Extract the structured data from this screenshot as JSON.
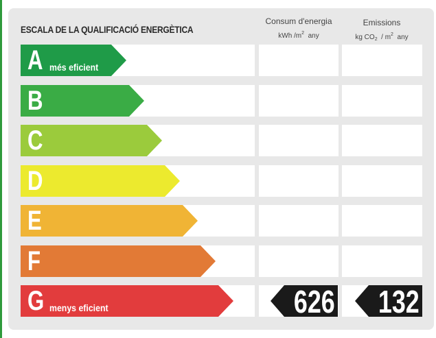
{
  "title": "ESCALA DE LA QUALIFICACIÓ ENERGÈTICA",
  "columns": {
    "energy": {
      "label": "Consum d'energia",
      "unit_a": "kWh /m",
      "unit_sup": "2",
      "unit_b": "any"
    },
    "emissions": {
      "label": "Emissions",
      "unit_a": "kg CO",
      "unit_sub": "2",
      "unit_mid": "/ m",
      "unit_sup": "2",
      "unit_b": "any"
    }
  },
  "classes": [
    {
      "letter": "A",
      "label": "més eficient",
      "color": "#1f9b48"
    },
    {
      "letter": "B",
      "label": "",
      "color": "#3aac45"
    },
    {
      "letter": "C",
      "label": "",
      "color": "#9bcb3c"
    },
    {
      "letter": "D",
      "label": "",
      "color": "#ecea2e"
    },
    {
      "letter": "E",
      "label": "",
      "color": "#f0b435"
    },
    {
      "letter": "F",
      "label": "",
      "color": "#e27a36"
    },
    {
      "letter": "G",
      "label": "menys eficient",
      "color": "#e23c3d"
    }
  ],
  "rating": {
    "class": "G",
    "energy_value": "626",
    "emissions_value": "132"
  }
}
